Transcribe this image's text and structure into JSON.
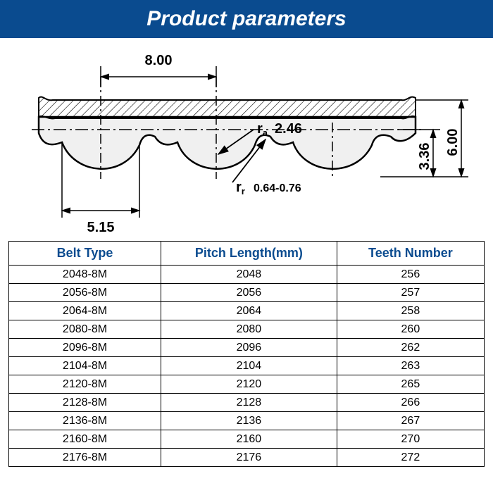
{
  "header": {
    "title": "Product parameters",
    "bg_color": "#0a4b8f",
    "text_color": "#ffffff"
  },
  "diagram": {
    "pitch": "8.00",
    "height_outer": "6.00",
    "height_inner": "3.36",
    "width": "5.15",
    "ra_label": "r",
    "ra_sub": "a",
    "ra_value": "2.46",
    "rr_label": "r",
    "rr_sub": "r",
    "rr_value": "0.64-0.76",
    "profile_fill": "#f0f0f0",
    "hatch_color": "#000000",
    "line_color": "#000000"
  },
  "table": {
    "headers": [
      "Belt Type",
      "Pitch Length(mm)",
      "Teeth Number"
    ],
    "header_color": "#0a4b8f",
    "rows": [
      [
        "2048-8M",
        "2048",
        "256"
      ],
      [
        "2056-8M",
        "2056",
        "257"
      ],
      [
        "2064-8M",
        "2064",
        "258"
      ],
      [
        "2080-8M",
        "2080",
        "260"
      ],
      [
        "2096-8M",
        "2096",
        "262"
      ],
      [
        "2104-8M",
        "2104",
        "263"
      ],
      [
        "2120-8M",
        "2120",
        "265"
      ],
      [
        "2128-8M",
        "2128",
        "266"
      ],
      [
        "2136-8M",
        "2136",
        "267"
      ],
      [
        "2160-8M",
        "2160",
        "270"
      ],
      [
        "2176-8M",
        "2176",
        "272"
      ]
    ]
  }
}
